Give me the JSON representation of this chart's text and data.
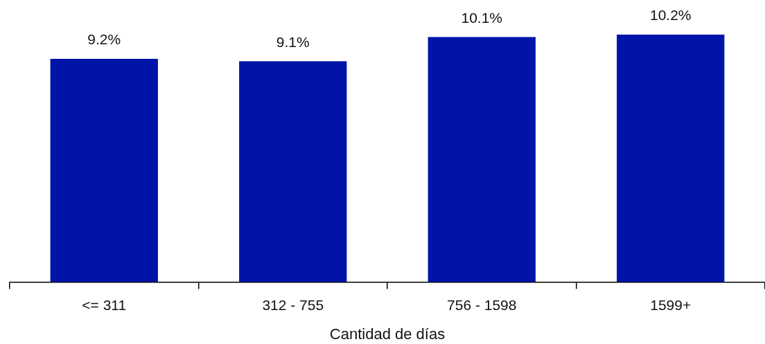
{
  "chart_data": {
    "type": "bar",
    "xlabel": "Cantidad de días",
    "categories": [
      "<= 311",
      "312 - 755",
      "756 - 1598",
      "1599+"
    ],
    "values": [
      9.2,
      9.1,
      10.1,
      10.2
    ],
    "value_labels": [
      "9.2%",
      "9.1%",
      "10.1%",
      "10.2%"
    ],
    "color": "#0014a8"
  }
}
